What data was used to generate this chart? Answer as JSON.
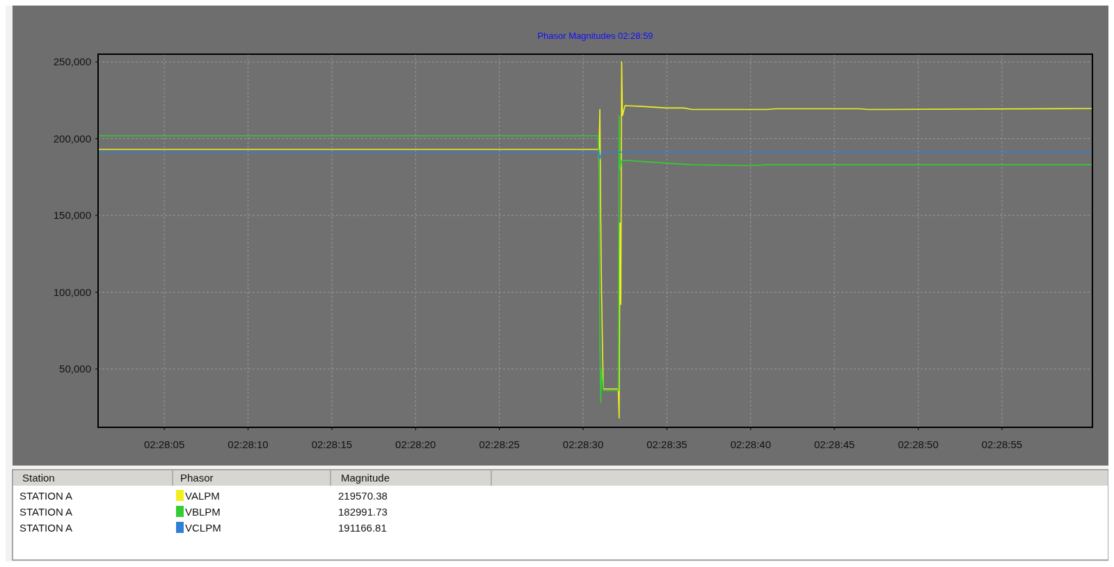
{
  "chart_data": {
    "type": "line",
    "title": "Phasor Magnitudes 02:28:59",
    "xlim": [
      2.4669583,
      2.4834444
    ],
    "ylim": [
      12000,
      255000
    ],
    "xticks": [
      {
        "value": 2.4680556,
        "label": "02:28:05"
      },
      {
        "value": 2.4694444,
        "label": "02:28:10"
      },
      {
        "value": 2.4708333,
        "label": "02:28:15"
      },
      {
        "value": 2.4722222,
        "label": "02:28:20"
      },
      {
        "value": 2.4736111,
        "label": "02:28:25"
      },
      {
        "value": 2.475,
        "label": "02:28:30"
      },
      {
        "value": 2.4763889,
        "label": "02:28:35"
      },
      {
        "value": 2.4777778,
        "label": "02:28:40"
      },
      {
        "value": 2.4791667,
        "label": "02:28:45"
      },
      {
        "value": 2.4805556,
        "label": "02:28:50"
      },
      {
        "value": 2.4819444,
        "label": "02:28:55"
      }
    ],
    "yticks": [
      {
        "value": 50000,
        "label": "50,000"
      },
      {
        "value": 100000,
        "label": "100,000"
      },
      {
        "value": 150000,
        "label": "150,000"
      },
      {
        "value": 200000,
        "label": "200,000"
      },
      {
        "value": 250000,
        "label": "250,000"
      }
    ],
    "grid": true,
    "legend": "bottom",
    "series": [
      {
        "name": "VALPM",
        "color": "#f0f020",
        "x": [
          2.4669583,
          2.4752639,
          2.4752778,
          2.4752917,
          2.4753056,
          2.4753333,
          2.4755833,
          2.4755972,
          2.4756111,
          2.475625,
          2.4756389,
          2.4756528,
          2.4756944,
          2.4759722,
          2.4763889,
          2.4766667,
          2.4768056,
          2.4780556,
          2.4781944,
          2.4795833,
          2.4797222,
          2.4834444
        ],
        "values": [
          193000,
          193000,
          219000,
          150000,
          100000,
          37000,
          37000,
          18000,
          145000,
          92000,
          250000,
          215000,
          221500,
          221000,
          220000,
          220000,
          219000,
          219000,
          219500,
          219500,
          219000,
          219600
        ]
      },
      {
        "name": "VBLPM",
        "color": "#33cc33",
        "x": [
          2.4669583,
          2.47525,
          2.4752639,
          2.4752778,
          2.4752917,
          2.4753056,
          2.4753333,
          2.4755833,
          2.4755972,
          2.4756111,
          2.4756389,
          2.4758333,
          2.4763889,
          2.4768056,
          2.4777778,
          2.4780556,
          2.4834444
        ],
        "values": [
          201800,
          201800,
          175000,
          65000,
          28000,
          50000,
          36000,
          36000,
          215000,
          180000,
          186000,
          185500,
          184000,
          183000,
          182500,
          183000,
          183000
        ]
      },
      {
        "name": "VCLPM",
        "color": "#2f7fd8",
        "x": [
          2.4669583,
          2.47525,
          2.4752778,
          2.4753056,
          2.4834444
        ],
        "values": [
          191200,
          191200,
          187000,
          191200,
          191200
        ]
      }
    ],
    "annotations": [
      "Station",
      "Phasor",
      "Magnitude",
      "STATION A",
      "219570.38",
      "STATION A",
      "182991.73",
      "STATION A",
      "191166.81"
    ]
  }
}
